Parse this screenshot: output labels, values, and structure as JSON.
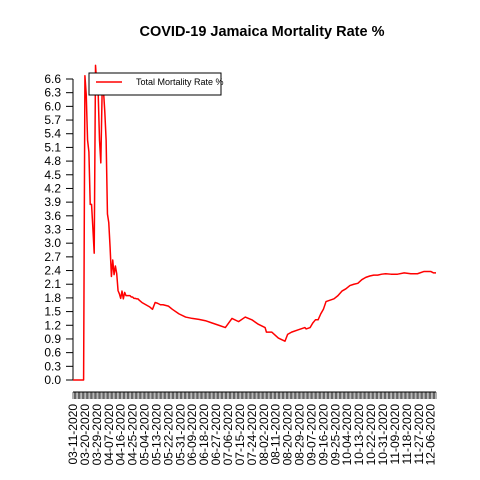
{
  "chart_data": {
    "type": "line",
    "title": "COVID-19 Jamaica Mortality Rate %",
    "xlabel": "",
    "ylabel": "",
    "ylim": [
      0,
      6.6
    ],
    "yticks": [
      "0.0",
      "0.3",
      "0.6",
      "0.9",
      "1.2",
      "1.5",
      "1.8",
      "2.1",
      "2.4",
      "2.7",
      "3.0",
      "3.3",
      "3.6",
      "3.9",
      "4.2",
      "4.5",
      "4.8",
      "5.1",
      "5.4",
      "5.7",
      "6.0",
      "6.3",
      "6.6"
    ],
    "xticks": [
      "03-11-2020",
      "03-20-2020",
      "03-29-2020",
      "04-07-2020",
      "04-16-2020",
      "04-25-2020",
      "05-04-2020",
      "05-13-2020",
      "05-22-2020",
      "05-31-2020",
      "06-09-2020",
      "06-18-2020",
      "06-27-2020",
      "07-06-2020",
      "07-15-2020",
      "07-24-2020",
      "08-02-2020",
      "08-11-2020",
      "08-20-2020",
      "08-29-2020",
      "09-07-2020",
      "09-16-2020",
      "09-25-2020",
      "10-04-2020",
      "10-13-2020",
      "10-22-2020",
      "10-31-2020",
      "11-09-2020",
      "11-18-2020",
      "11-27-2020",
      "12-06-2020"
    ],
    "day_range": [
      0,
      274
    ],
    "legend": "top-left",
    "series": [
      {
        "name": "Total Mortality Rate %",
        "color": "#ff0000",
        "x": [
          0,
          1,
          2,
          3,
          4,
          5,
          6,
          7,
          8,
          9,
          10,
          11,
          12,
          13,
          14,
          15,
          16,
          17,
          18,
          19,
          20,
          21,
          22,
          23,
          24,
          25,
          26,
          27,
          28,
          29,
          30,
          31,
          32,
          33,
          34,
          35,
          36,
          37,
          38,
          39,
          40,
          41,
          42,
          43,
          44,
          45,
          46,
          47,
          48,
          49,
          50,
          52,
          55,
          58,
          60,
          62,
          64,
          66,
          68,
          72,
          75,
          80,
          85,
          90,
          95,
          100,
          105,
          110,
          115,
          120,
          125,
          130,
          135,
          140,
          145,
          146,
          150,
          155,
          160,
          162,
          165,
          170,
          175,
          176,
          179,
          181,
          183,
          185,
          187,
          189,
          191,
          194,
          197,
          200,
          203,
          206,
          209,
          212,
          215,
          218,
          221,
          224,
          227,
          230,
          233,
          236,
          240,
          245,
          250,
          255,
          260,
          265,
          270,
          272,
          274
        ],
        "y": [
          0,
          0,
          0,
          0,
          0,
          0,
          0,
          0,
          0,
          6.67,
          6.25,
          5.26,
          5.0,
          3.85,
          3.85,
          3.33,
          2.78,
          6.9,
          6.45,
          6.3,
          5.26,
          4.76,
          6.35,
          6.35,
          5.88,
          5.26,
          3.64,
          3.45,
          2.91,
          2.27,
          2.63,
          2.31,
          2.5,
          2.33,
          1.96,
          1.89,
          1.79,
          1.95,
          1.78,
          1.92,
          1.85,
          1.85,
          1.85,
          1.85,
          1.82,
          1.82,
          1.79,
          1.79,
          1.78,
          1.78,
          1.75,
          1.7,
          1.65,
          1.6,
          1.55,
          1.7,
          1.68,
          1.65,
          1.65,
          1.62,
          1.55,
          1.45,
          1.38,
          1.35,
          1.33,
          1.3,
          1.25,
          1.2,
          1.15,
          1.35,
          1.28,
          1.38,
          1.32,
          1.22,
          1.15,
          1.05,
          1.05,
          0.92,
          0.85,
          1.0,
          1.05,
          1.1,
          1.15,
          1.12,
          1.15,
          1.25,
          1.32,
          1.32,
          1.45,
          1.55,
          1.72,
          1.75,
          1.78,
          1.85,
          1.95,
          2.0,
          2.07,
          2.1,
          2.12,
          2.2,
          2.25,
          2.28,
          2.3,
          2.3,
          2.32,
          2.33,
          2.32,
          2.32,
          2.35,
          2.33,
          2.33,
          2.38,
          2.38,
          2.35,
          2.35
        ]
      }
    ]
  }
}
